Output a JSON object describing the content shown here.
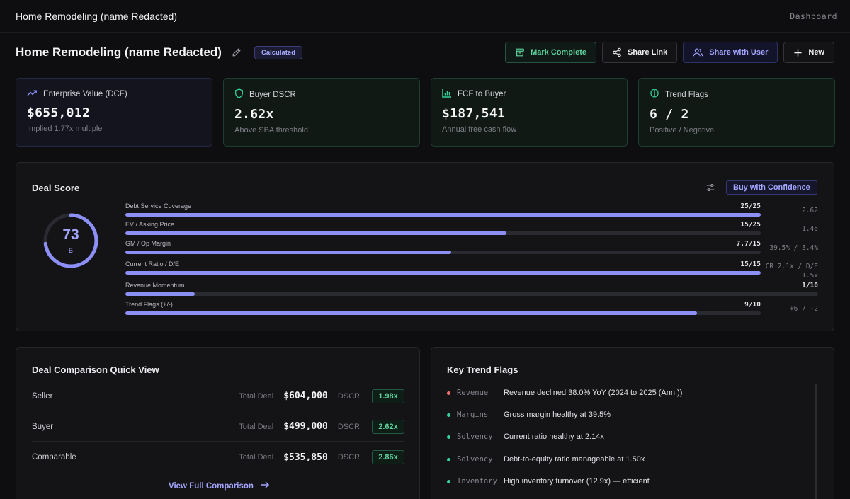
{
  "topbar": {
    "app_title": "Home Remodeling (name Redacted)",
    "crumb": "Dashboard"
  },
  "header": {
    "title": "Home Remodeling (name Redacted)",
    "status_badge": "Calculated",
    "buttons": {
      "mark_complete": "Mark Complete",
      "share_link": "Share Link",
      "share_user": "Share with User",
      "new": "New"
    }
  },
  "kpis": [
    {
      "icon": "trend-up-icon",
      "label": "Enterprise Value (DCF)",
      "value": "$655,012",
      "sub": "Implied 1.77x multiple"
    },
    {
      "icon": "shield-icon",
      "label": "Buyer DSCR",
      "value": "2.62x",
      "sub": "Above SBA threshold"
    },
    {
      "icon": "bar-chart-icon",
      "label": "FCF to Buyer",
      "value": "$187,541",
      "sub": "Annual free cash flow"
    },
    {
      "icon": "brain-icon",
      "label": "Trend Flags",
      "value": "6 / 2",
      "sub": "Positive / Negative"
    }
  ],
  "deal_score": {
    "title": "Deal Score",
    "action": "Buy with Confidence",
    "score": "73",
    "score_value": 73,
    "grade": "B",
    "metrics": [
      {
        "label": "Debt Service Coverage",
        "score": "25/25",
        "fraction": 1.0,
        "raw": "2.62"
      },
      {
        "label": "EV / Asking Price",
        "score": "15/25",
        "fraction": 0.6,
        "raw": "1.46"
      },
      {
        "label": "GM / Op Margin",
        "score": "7.7/15",
        "fraction": 0.513,
        "raw": "39.5% / 3.4%"
      },
      {
        "label": "Current Ratio / D/E",
        "score": "15/15",
        "fraction": 1.0,
        "raw": "CR 2.1x / D/E\n1.5x"
      },
      {
        "label": "Revenue Momentum",
        "score": "1/10",
        "fraction": 0.1,
        "raw": ""
      },
      {
        "label": "Trend Flags (+/-)",
        "score": "9/10",
        "fraction": 0.9,
        "raw": "+6 / -2"
      }
    ]
  },
  "comparison": {
    "title": "Deal Comparison Quick View",
    "total_label": "Total Deal",
    "dscr_label": "DSCR",
    "rows": [
      {
        "name": "Seller",
        "amount": "$604,000",
        "dscr": "1.98x"
      },
      {
        "name": "Buyer",
        "amount": "$499,000",
        "dscr": "2.62x"
      },
      {
        "name": "Comparable",
        "amount": "$535,850",
        "dscr": "2.86x"
      }
    ],
    "link": "View Full Comparison"
  },
  "trend_flags": {
    "title": "Key Trend Flags",
    "items": [
      {
        "status": "negative",
        "category": "Revenue",
        "text": "Revenue declined 38.0% YoY (2024 to 2025 (Ann.))"
      },
      {
        "status": "positive",
        "category": "Margins",
        "text": "Gross margin healthy at 39.5%"
      },
      {
        "status": "positive",
        "category": "Solvency",
        "text": "Current ratio healthy at 2.14x"
      },
      {
        "status": "positive",
        "category": "Solvency",
        "text": "Debt-to-equity ratio manageable at 1.50x"
      },
      {
        "status": "positive",
        "category": "Inventory",
        "text": "High inventory turnover (12.9x) — efficient"
      }
    ]
  },
  "colors": {
    "accent": "#8c8ff5",
    "positive": "#34d399",
    "negative": "#f87171",
    "background": "#0e0e11"
  }
}
